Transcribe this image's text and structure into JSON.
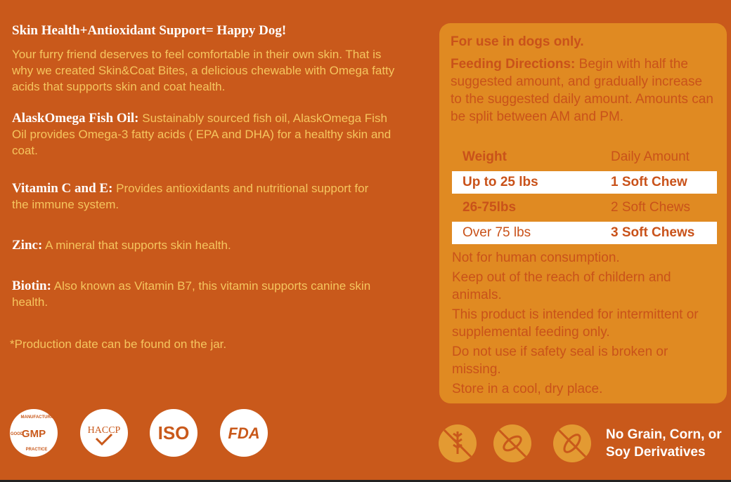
{
  "left": {
    "title": "Skin Health+Antioxidant Support= Happy Dog!",
    "intro": "Your furry friend deserves to feel comfortable in their own skin. That is why we created Skin&Coat Bites, a delicious chewable with Omega fatty acids that supports skin and coat health.",
    "sections": [
      {
        "heading": "AlaskOmega Fish Oil:",
        "text": "Sustainably sourced fish oil, AlaskOmega Fish Oil provides Omega-3 fatty acids ( EPA and DHA) for a healthy skin and coat."
      },
      {
        "heading": "Vitamin C and E:",
        "text": "Provides antioxidants and nutritional support for the immune system."
      },
      {
        "heading": "Zinc:",
        "text": "A mineral that supports skin health."
      },
      {
        "heading": "Biotin:",
        "text": "Also known as Vitamin B7, this vitamin supports canine skin health."
      }
    ],
    "footnote": "*Production date can be found on the jar."
  },
  "badges": {
    "gmp": "GMP",
    "gmp_top": "MANUFACTURING",
    "gmp_left": "GOOD",
    "gmp_bottom": "PRACTICE",
    "haccp": "HACCP",
    "iso": "ISO",
    "fda": "FDA"
  },
  "panel": {
    "warning": "For use in dogs only.",
    "directions_label": "Feeding Directions:",
    "directions": "Begin with half the suggested amount, and gradually increase to the suggested daily amount. Amounts can be split between AM and PM.",
    "table": {
      "header": [
        "Weight",
        "Daily Amount"
      ],
      "rows": [
        [
          "Up to 25 lbs",
          "1 Soft Chew"
        ],
        [
          "26-75lbs",
          "2 Soft Chews"
        ],
        [
          "Over 75 lbs",
          "3 Soft Chews"
        ]
      ]
    },
    "notes": [
      "Not for human consumption.",
      "Keep out of the reach of childern and animals.",
      "This product is intended for intermittent or supplemental feeding only.",
      "Do not use if safety seal is broken or missing.",
      "Store in a cool, dry place."
    ]
  },
  "free_from": "No Grain, Corn, or Soy Derivatives"
}
